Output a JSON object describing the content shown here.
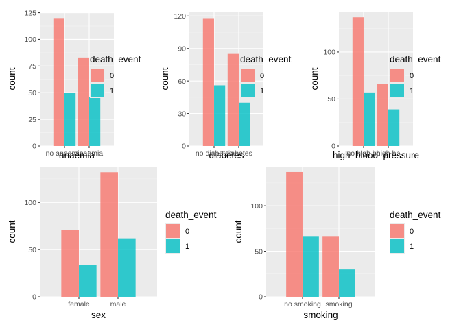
{
  "colors": {
    "series_0": "#F8766D",
    "series_1": "#00BFC4",
    "bar_alpha": 0.8
  },
  "chart_data": [
    {
      "type": "bar",
      "xlabel": "anaemia",
      "ylabel": "count",
      "categories": [
        "no anaemia",
        "anaemia"
      ],
      "yticks": [
        0,
        25,
        50,
        75,
        100,
        125
      ],
      "ylim": [
        0,
        126
      ],
      "legend": {
        "title": "death_event",
        "placement": "right"
      },
      "series": [
        {
          "name": "0",
          "values": [
            120,
            83
          ]
        },
        {
          "name": "1",
          "values": [
            50,
            46
          ]
        }
      ]
    },
    {
      "type": "bar",
      "xlabel": "diabetes",
      "ylabel": "count",
      "categories": [
        "no diabetes",
        "diabetes"
      ],
      "yticks": [
        0,
        30,
        60,
        90,
        120
      ],
      "ylim": [
        0,
        124
      ],
      "legend": {
        "title": "death_event",
        "placement": "right"
      },
      "series": [
        {
          "name": "0",
          "values": [
            118,
            85
          ]
        },
        {
          "name": "1",
          "values": [
            56,
            40
          ]
        }
      ]
    },
    {
      "type": "bar",
      "xlabel": "high_blood_pressure",
      "ylabel": "count",
      "categories": [
        "no high bp",
        "high bp"
      ],
      "yticks": [
        0,
        50,
        100
      ],
      "ylim": [
        0,
        143
      ],
      "legend": {
        "title": "death_event",
        "placement": "right"
      },
      "series": [
        {
          "name": "0",
          "values": [
            137,
            66
          ]
        },
        {
          "name": "1",
          "values": [
            57,
            39
          ]
        }
      ]
    },
    {
      "type": "bar",
      "xlabel": "sex",
      "ylabel": "count",
      "categories": [
        "female",
        "male"
      ],
      "yticks": [
        0,
        50,
        100
      ],
      "ylim": [
        0,
        138
      ],
      "legend": {
        "title": "death_event",
        "placement": "right"
      },
      "series": [
        {
          "name": "0",
          "values": [
            71,
            132
          ]
        },
        {
          "name": "1",
          "values": [
            34,
            62
          ]
        }
      ]
    },
    {
      "type": "bar",
      "xlabel": "smoking",
      "ylabel": "count",
      "categories": [
        "no smoking",
        "smoking"
      ],
      "yticks": [
        0,
        50,
        100
      ],
      "ylim": [
        0,
        143
      ],
      "legend": {
        "title": "death_event",
        "placement": "right"
      },
      "series": [
        {
          "name": "0",
          "values": [
            137,
            66
          ]
        },
        {
          "name": "1",
          "values": [
            66,
            30
          ]
        }
      ]
    }
  ]
}
